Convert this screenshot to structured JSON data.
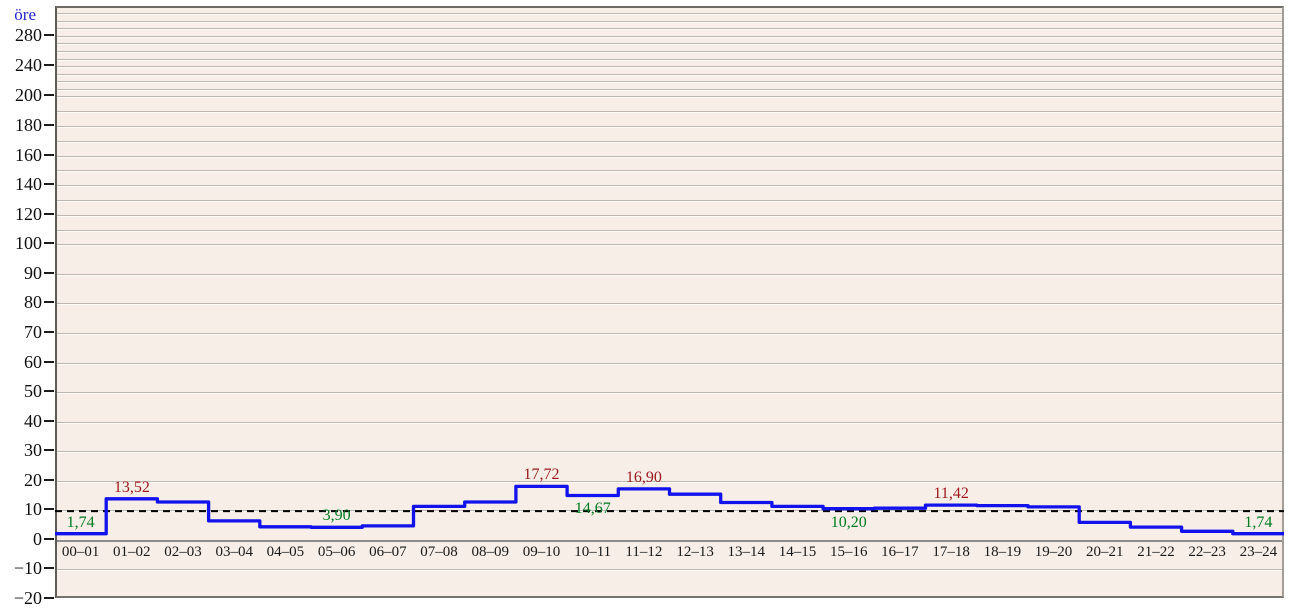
{
  "unit_label": "öre",
  "colors": {
    "price_line": "#1212ec",
    "max_annotation": "#9e1a20",
    "min_annotation": "#007a22",
    "unit_label": "#2424cc",
    "plot_background": "#f6eee7",
    "gridline": "#bdb8b0",
    "zero_line": "#8c8c8c",
    "average_line": "#000000",
    "tick_text": "#111111"
  },
  "chart_data": {
    "type": "line",
    "subtype": "step",
    "title": "",
    "ylabel": "öre",
    "xlabel": "",
    "legend": "none",
    "grid": "horizontal-only",
    "ylim": [
      -20,
      318
    ],
    "y_axis_note": "linear below 100, compressed 100-200 (half), further compressed above 200 (quarter); minor gridlines every 10",
    "categories": [
      "00–01",
      "01–02",
      "02–03",
      "03–04",
      "04–05",
      "05–06",
      "06–07",
      "07–08",
      "08–09",
      "09–10",
      "10–11",
      "11–12",
      "12–13",
      "13–14",
      "14–15",
      "15–16",
      "16–17",
      "17–18",
      "18–19",
      "19–20",
      "20–21",
      "21–22",
      "22–23",
      "23–24"
    ],
    "values": [
      1.74,
      13.52,
      12.45,
      6.05,
      4.05,
      3.9,
      4.35,
      10.95,
      12.45,
      17.72,
      14.67,
      16.9,
      15.1,
      12.3,
      10.95,
      10.2,
      10.35,
      11.42,
      11.25,
      10.8,
      5.55,
      3.95,
      2.55,
      1.74
    ],
    "y_tick_values": [
      280,
      240,
      200,
      180,
      160,
      140,
      120,
      100,
      90,
      80,
      70,
      60,
      50,
      40,
      30,
      20,
      10,
      0,
      -10,
      -20
    ],
    "y_tick_labels": [
      "280",
      "240",
      "200",
      "180",
      "160",
      "140",
      "120",
      "100",
      "90",
      "80",
      "70",
      "60",
      "50",
      "40",
      "30",
      "20",
      "10",
      "0",
      "−10",
      "−20"
    ],
    "minor_grid_step": 10,
    "minor_grid_range": [
      -10,
      310
    ],
    "average_line_value": 9.36,
    "average_line_style": "black dashed",
    "annotations": [
      {
        "hour_index": 0,
        "label": "1,74",
        "kind": "min",
        "placement": "above"
      },
      {
        "hour_index": 1,
        "label": "13,52",
        "kind": "max",
        "placement": "above"
      },
      {
        "hour_index": 5,
        "label": "3,90",
        "kind": "min",
        "placement": "above"
      },
      {
        "hour_index": 9,
        "label": "17,72",
        "kind": "max",
        "placement": "above"
      },
      {
        "hour_index": 10,
        "label": "14,67",
        "kind": "min",
        "placement": "below"
      },
      {
        "hour_index": 11,
        "label": "16,90",
        "kind": "max",
        "placement": "above"
      },
      {
        "hour_index": 15,
        "label": "10,20",
        "kind": "min",
        "placement": "below"
      },
      {
        "hour_index": 17,
        "label": "11,42",
        "kind": "max",
        "placement": "above"
      },
      {
        "hour_index": 23,
        "label": "1,74",
        "kind": "min",
        "placement": "above"
      }
    ]
  }
}
